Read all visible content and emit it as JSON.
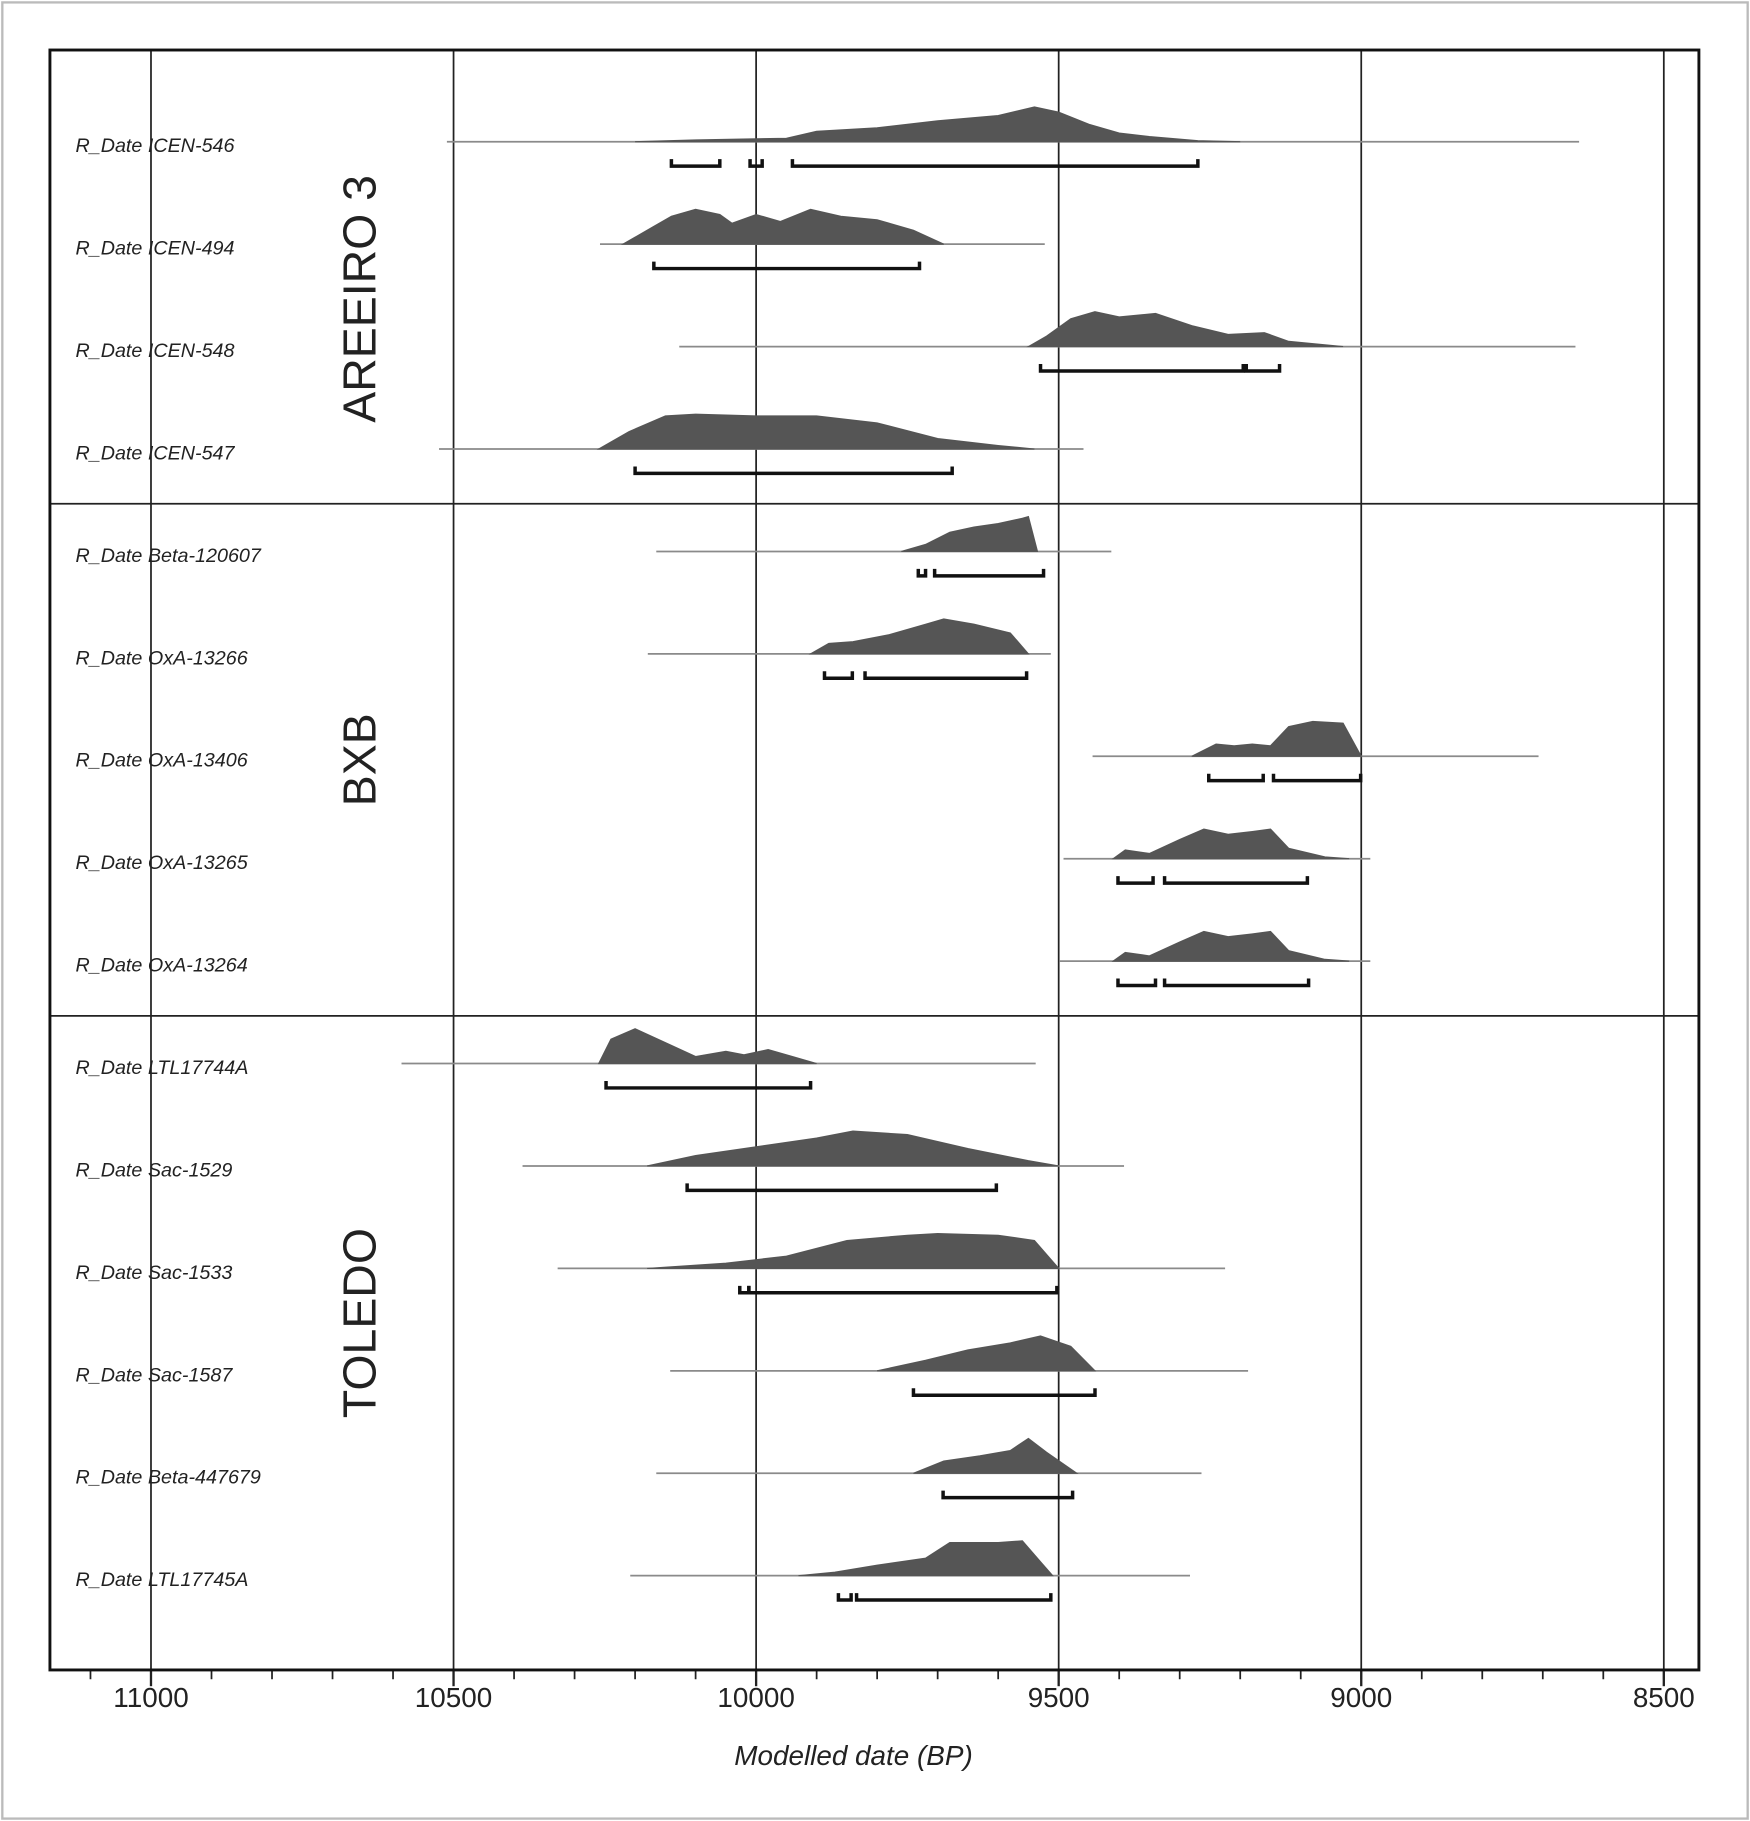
{
  "chart_data": {
    "type": "multiplot",
    "x_label": "Modelled date (BP)",
    "xlim": [
      11167,
      8442
    ],
    "xticks": [
      11000,
      10500,
      10000,
      9500,
      9000,
      8500
    ],
    "xminorticks": [
      11100,
      11000,
      10900,
      10800,
      10700,
      10600,
      10500,
      10400,
      10300,
      10200,
      10100,
      10000,
      9900,
      9800,
      9700,
      9600,
      9500,
      9400,
      9300,
      9200,
      9100,
      9000,
      8900,
      8800,
      8700,
      8600,
      8500
    ],
    "grid": true,
    "fill_color": "#555555",
    "line_color": "#8a8a8a",
    "range_color": "#111111",
    "groups": [
      {
        "name": "AREEIRO 3",
        "items": [
          {
            "label": "R_Date ICEN-546",
            "extent": [
              10511,
              8640
            ],
            "density_x": [
              10200,
              10100,
              9950,
              9900,
              9800,
              9700,
              9600,
              9540,
              9500,
              9450,
              9400,
              9350,
              9270,
              9200
            ],
            "density": [
              0,
              0.05,
              0.1,
              0.3,
              0.4,
              0.6,
              0.75,
              1,
              0.85,
              0.5,
              0.25,
              0.15,
              0.03,
              0
            ],
            "ranges": [
              [
                10140,
                10060
              ],
              [
                10010,
                9990
              ],
              [
                9940,
                9270
              ]
            ]
          },
          {
            "label": "R_Date ICEN-494",
            "extent": [
              10258,
              9523
            ],
            "density_x": [
              10220,
              10170,
              10140,
              10100,
              10060,
              10040,
              10000,
              9960,
              9910,
              9860,
              9800,
              9740,
              9690
            ],
            "density": [
              0,
              0.5,
              0.8,
              1,
              0.85,
              0.6,
              0.85,
              0.65,
              1,
              0.8,
              0.7,
              0.4,
              0
            ],
            "ranges": [
              [
                10169,
                9730
              ]
            ]
          },
          {
            "label": "R_Date ICEN-548",
            "extent": [
              10127,
              8646
            ],
            "density_x": [
              9550,
              9520,
              9480,
              9440,
              9400,
              9340,
              9280,
              9220,
              9160,
              9120,
              9030
            ],
            "density": [
              0,
              0.3,
              0.8,
              1,
              0.85,
              0.95,
              0.6,
              0.35,
              0.4,
              0.15,
              0
            ],
            "ranges": [
              [
                9530,
                9195
              ],
              [
                9190,
                9135
              ]
            ]
          },
          {
            "label": "R_Date ICEN-547",
            "extent": [
              10524,
              9459
            ],
            "density_x": [
              10260,
              10210,
              10150,
              10100,
              10000,
              9900,
              9800,
              9700,
              9600,
              9540
            ],
            "density": [
              0,
              0.5,
              0.95,
              1,
              0.95,
              0.95,
              0.75,
              0.3,
              0.1,
              0
            ],
            "ranges": [
              [
                10200,
                9676
              ]
            ]
          }
        ]
      },
      {
        "name": "BXB",
        "items": [
          {
            "label": "R_Date Beta-120607",
            "extent": [
              10165,
              9413
            ],
            "density_x": [
              9760,
              9720,
              9680,
              9640,
              9600,
              9560,
              9550,
              9535
            ],
            "density": [
              0,
              0.2,
              0.55,
              0.7,
              0.8,
              0.95,
              1,
              0
            ],
            "ranges": [
              [
                9732,
                9720
              ],
              [
                9705,
                9525
              ]
            ]
          },
          {
            "label": "R_Date OxA-13266",
            "extent": [
              10179,
              9513
            ],
            "density_x": [
              9910,
              9880,
              9840,
              9780,
              9720,
              9690,
              9640,
              9580,
              9550
            ],
            "density": [
              0,
              0.3,
              0.35,
              0.55,
              0.85,
              1,
              0.85,
              0.6,
              0
            ],
            "ranges": [
              [
                9887,
                9841
              ],
              [
                9820,
                9553
              ]
            ]
          },
          {
            "label": "R_Date OxA-13406",
            "extent": [
              9444,
              8707
            ],
            "density_x": [
              9280,
              9240,
              9210,
              9180,
              9150,
              9120,
              9080,
              9030,
              9000
            ],
            "density": [
              0,
              0.35,
              0.3,
              0.35,
              0.3,
              0.85,
              1,
              0.95,
              0
            ],
            "ranges": [
              [
                9252,
                9162
              ],
              [
                9145,
                9001
              ]
            ]
          },
          {
            "label": "R_Date OxA-13265",
            "extent": [
              9492,
              8985
            ],
            "density_x": [
              9410,
              9390,
              9350,
              9300,
              9260,
              9220,
              9180,
              9150,
              9120,
              9060,
              9020
            ],
            "density": [
              0,
              0.25,
              0.15,
              0.55,
              0.85,
              0.7,
              0.78,
              0.85,
              0.3,
              0.05,
              0
            ],
            "ranges": [
              [
                9402,
                9344
              ],
              [
                9325,
                9089
              ]
            ]
          },
          {
            "label": "R_Date OxA-13264",
            "extent": [
              9498,
              8985
            ],
            "density_x": [
              9410,
              9390,
              9350,
              9300,
              9260,
              9220,
              9180,
              9150,
              9120,
              9060,
              9020
            ],
            "density": [
              0,
              0.25,
              0.15,
              0.55,
              0.85,
              0.7,
              0.78,
              0.85,
              0.3,
              0.05,
              0
            ],
            "ranges": [
              [
                9402,
                9340
              ],
              [
                9325,
                9087
              ]
            ]
          }
        ]
      },
      {
        "name": "TOLEDO",
        "items": [
          {
            "label": "R_Date LTL17744A",
            "extent": [
              10586,
              9538
            ],
            "density_x": [
              10260,
              10240,
              10200,
              10150,
              10100,
              10050,
              10020,
              9980,
              9940,
              9900
            ],
            "density": [
              0,
              0.7,
              1,
              0.6,
              0.2,
              0.35,
              0.25,
              0.4,
              0.2,
              0
            ],
            "ranges": [
              [
                10248,
                9910
              ]
            ]
          },
          {
            "label": "R_Date Sac-1529",
            "extent": [
              10386,
              9392
            ],
            "density_x": [
              10180,
              10100,
              10000,
              9900,
              9840,
              9750,
              9650,
              9550,
              9500
            ],
            "density": [
              0,
              0.3,
              0.55,
              0.8,
              1,
              0.9,
              0.5,
              0.15,
              0
            ],
            "ranges": [
              [
                10114,
                9603
              ]
            ]
          },
          {
            "label": "R_Date Sac-1533",
            "extent": [
              10328,
              9225
            ],
            "density_x": [
              10180,
              10050,
              9950,
              9850,
              9750,
              9700,
              9600,
              9540,
              9500
            ],
            "density": [
              0,
              0.15,
              0.35,
              0.8,
              0.95,
              1,
              0.95,
              0.8,
              0
            ],
            "ranges": [
              [
                10027,
                10012
              ],
              [
                10012,
                9503
              ]
            ]
          },
          {
            "label": "R_Date Sac-1587",
            "extent": [
              10142,
              9187
            ],
            "density_x": [
              9800,
              9720,
              9650,
              9580,
              9530,
              9480,
              9440
            ],
            "density": [
              0,
              0.3,
              0.6,
              0.8,
              1,
              0.7,
              0
            ],
            "ranges": [
              [
                9740,
                9440
              ]
            ]
          },
          {
            "label": "R_Date Beta-447679",
            "extent": [
              10165,
              9264
            ],
            "density_x": [
              9740,
              9690,
              9630,
              9580,
              9550,
              9520,
              9470
            ],
            "density": [
              0,
              0.35,
              0.5,
              0.65,
              1,
              0.6,
              0
            ],
            "ranges": [
              [
                9691,
                9477
              ]
            ]
          },
          {
            "label": "R_Date LTL17745A",
            "extent": [
              10208,
              9283
            ],
            "density_x": [
              9930,
              9870,
              9800,
              9720,
              9680,
              9600,
              9560,
              9530,
              9510
            ],
            "density": [
              0,
              0.1,
              0.3,
              0.5,
              0.95,
              0.95,
              1,
              0.4,
              0
            ],
            "ranges": [
              [
                9864,
                9843
              ],
              [
                9834,
                9513
              ]
            ]
          }
        ]
      }
    ]
  }
}
